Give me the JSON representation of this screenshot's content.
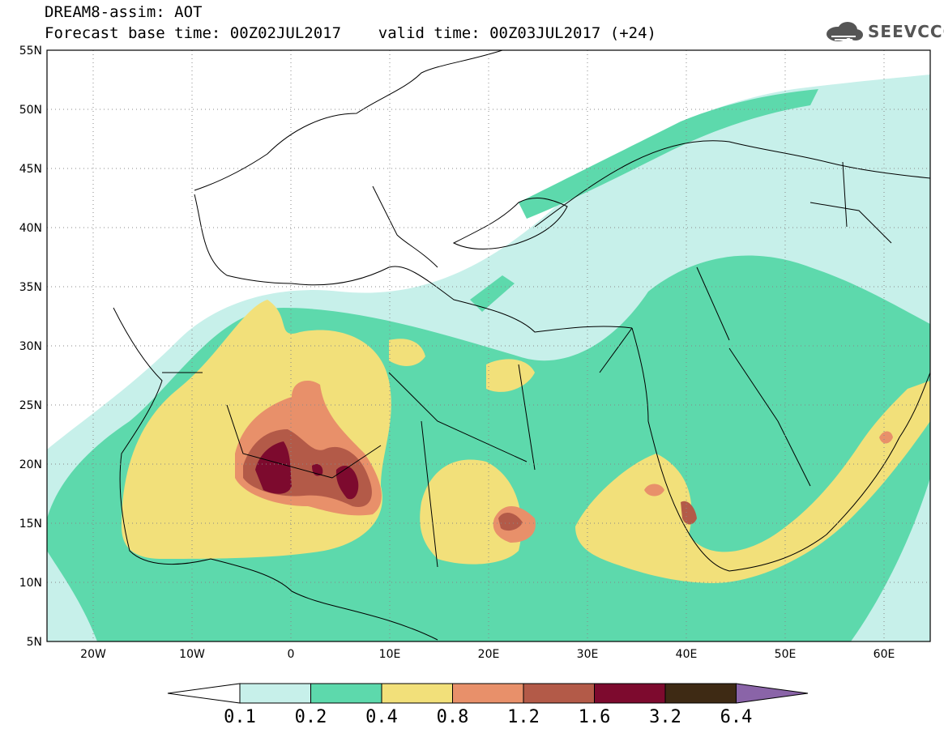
{
  "header": {
    "line1": "DREAM8-assim: AOT",
    "line2": "Forecast base time: 00Z02JUL2017    valid time: 00Z03JUL2017 (+24)"
  },
  "logo": {
    "text": "SEEVCCC",
    "icon": "cloud-icon"
  },
  "map": {
    "lat_labels": [
      "55N",
      "50N",
      "45N",
      "40N",
      "35N",
      "30N",
      "25N",
      "20N",
      "15N",
      "10N",
      "5N"
    ],
    "lon_labels": [
      "20W",
      "10W",
      "0",
      "10E",
      "20E",
      "30E",
      "40E",
      "50E",
      "60E"
    ],
    "region": {
      "lon_min": -25,
      "lon_max": 65,
      "lat_min": 5,
      "lat_max": 55
    }
  },
  "colorbar": {
    "labels": [
      "0.1",
      "0.2",
      "0.4",
      "0.8",
      "1.2",
      "1.6",
      "3.2",
      "6.4"
    ],
    "colors": [
      "#ffffff",
      "#c7f0ea",
      "#5dd9ac",
      "#f2e07a",
      "#e8906a",
      "#b35a48",
      "#7d0a2e",
      "#3e2a14",
      "#8a64a8"
    ]
  },
  "colors": {
    "l1": "#c7f0ea",
    "l2": "#5dd9ac",
    "l3": "#f2e07a",
    "l4": "#e8906a",
    "l5": "#b35a48",
    "l6": "#7d0a2e"
  }
}
